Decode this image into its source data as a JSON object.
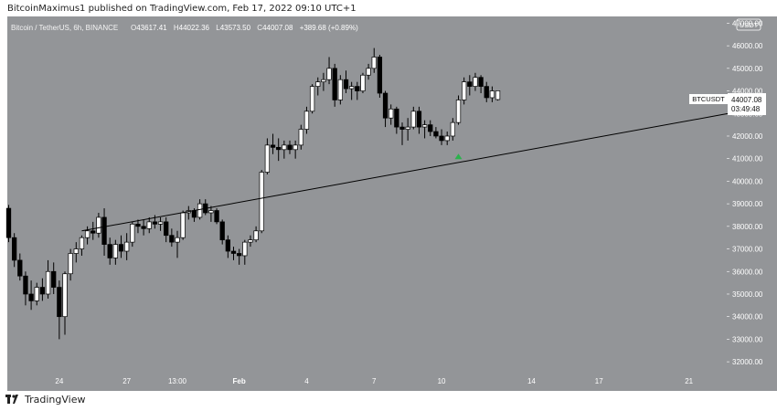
{
  "publish_caption": "BitcoinMaximus1 published on TradingView.com, Feb 17, 2022 09:10 UTC+1",
  "footer": {
    "brand": "TradingView"
  },
  "symbol_header": {
    "name": "Bitcoin / TetherUS, 6h, BINANCE",
    "open_label": "O",
    "open": "43617.41",
    "high_label": "H",
    "high": "44022.36",
    "low_label": "L",
    "low": "43573.50",
    "close_label": "C",
    "close": "44007.08",
    "change": "+389.68 (+0.89%)"
  },
  "price_axis": {
    "currency": "USDT",
    "ticks": [
      "47000.00",
      "46000.00",
      "45000.00",
      "44000.00",
      "43000.00",
      "42000.00",
      "41000.00",
      "40000.00",
      "39000.00",
      "38000.00",
      "37000.00",
      "36000.00",
      "35000.00",
      "34000.00",
      "33000.00",
      "32000.00"
    ]
  },
  "price_tag": {
    "symbol": "BTCUSDT",
    "price": "44007.08",
    "countdown": "03:49:48"
  },
  "time_axis": {
    "labels": [
      "24",
      "27",
      "13:00",
      "Feb",
      "4",
      "7",
      "10",
      "14",
      "17",
      "21"
    ]
  },
  "colors": {
    "background": "#939598",
    "up": "#ffffff",
    "down": "#000000",
    "trendline": "#000000",
    "arrow": "#2bb24c"
  },
  "chart_data": {
    "type": "candlestick",
    "symbol": "BTCUSDT",
    "interval": "6h",
    "exchange": "BINANCE",
    "ylim": [
      31600,
      47300
    ],
    "ohlc": [
      [
        38800,
        38950,
        37300,
        37500
      ],
      [
        37500,
        37700,
        36200,
        36500
      ],
      [
        36500,
        36800,
        35600,
        35800
      ],
      [
        35800,
        36000,
        34500,
        35000
      ],
      [
        35000,
        35600,
        34300,
        34700
      ],
      [
        34700,
        35500,
        34500,
        35300
      ],
      [
        35300,
        35700,
        34700,
        35000
      ],
      [
        35000,
        36500,
        34800,
        36000
      ],
      [
        36000,
        36400,
        35000,
        35300
      ],
      [
        35300,
        35600,
        33000,
        34000
      ],
      [
        34000,
        36000,
        33200,
        35900
      ],
      [
        35900,
        37000,
        35600,
        36800
      ],
      [
        36800,
        37300,
        36400,
        37000
      ],
      [
        37000,
        37600,
        36700,
        37500
      ],
      [
        37500,
        38000,
        37200,
        37800
      ],
      [
        37800,
        38200,
        37400,
        37700
      ],
      [
        37700,
        38600,
        37500,
        38400
      ],
      [
        38400,
        38800,
        36700,
        37200
      ],
      [
        37200,
        37500,
        36300,
        36600
      ],
      [
        36600,
        37400,
        36300,
        37200
      ],
      [
        37200,
        37600,
        36600,
        36900
      ],
      [
        36900,
        37700,
        36500,
        37300
      ],
      [
        37300,
        38200,
        37100,
        38100
      ],
      [
        38100,
        38300,
        37700,
        38000
      ],
      [
        38000,
        38300,
        37600,
        37900
      ],
      [
        37900,
        38400,
        37700,
        38200
      ],
      [
        38200,
        38500,
        37900,
        38100
      ],
      [
        38100,
        38400,
        37800,
        38200
      ],
      [
        38200,
        38400,
        37300,
        37600
      ],
      [
        37600,
        37900,
        37100,
        37300
      ],
      [
        37300,
        37800,
        36600,
        37500
      ],
      [
        37500,
        38700,
        37400,
        38600
      ],
      [
        38600,
        38900,
        38300,
        38700
      ],
      [
        38700,
        38800,
        38200,
        38400
      ],
      [
        38400,
        39200,
        38300,
        39000
      ],
      [
        39000,
        39200,
        38500,
        38600
      ],
      [
        38600,
        38900,
        38200,
        38700
      ],
      [
        38700,
        38800,
        38100,
        38200
      ],
      [
        38200,
        38300,
        37200,
        37400
      ],
      [
        37400,
        37600,
        36600,
        36900
      ],
      [
        36900,
        37100,
        36500,
        36800
      ],
      [
        36800,
        37000,
        36300,
        36700
      ],
      [
        36700,
        37400,
        36300,
        37300
      ],
      [
        37300,
        37600,
        37100,
        37400
      ],
      [
        37400,
        38000,
        37300,
        37800
      ],
      [
        37800,
        40500,
        37700,
        40400
      ],
      [
        40400,
        41900,
        40300,
        41600
      ],
      [
        41600,
        42100,
        41200,
        41500
      ],
      [
        41500,
        41900,
        40900,
        41400
      ],
      [
        41400,
        41800,
        41000,
        41600
      ],
      [
        41600,
        41800,
        41200,
        41400
      ],
      [
        41400,
        41800,
        41000,
        41600
      ],
      [
        41600,
        42500,
        41400,
        42300
      ],
      [
        42300,
        43300,
        42100,
        43100
      ],
      [
        43100,
        44300,
        43000,
        44200
      ],
      [
        44200,
        44600,
        43800,
        44400
      ],
      [
        44400,
        44800,
        44000,
        44500
      ],
      [
        44500,
        45500,
        44300,
        45000
      ],
      [
        45000,
        45200,
        43300,
        43600
      ],
      [
        43600,
        44700,
        43400,
        44500
      ],
      [
        44500,
        44900,
        43900,
        44100
      ],
      [
        44100,
        44400,
        43600,
        44200
      ],
      [
        44200,
        44400,
        43600,
        44000
      ],
      [
        44000,
        44800,
        43900,
        44700
      ],
      [
        44700,
        45200,
        44500,
        45000
      ],
      [
        45000,
        45900,
        44800,
        45500
      ],
      [
        45500,
        45600,
        43700,
        43900
      ],
      [
        43900,
        44000,
        42400,
        42800
      ],
      [
        42800,
        43400,
        42500,
        43200
      ],
      [
        43200,
        43300,
        42100,
        42400
      ],
      [
        42400,
        42600,
        41600,
        42300
      ],
      [
        42300,
        42800,
        41800,
        42400
      ],
      [
        42400,
        43300,
        42300,
        43100
      ],
      [
        43100,
        43300,
        42100,
        42400
      ],
      [
        42400,
        42700,
        41900,
        42500
      ],
      [
        42500,
        42700,
        42000,
        42200
      ],
      [
        42200,
        42400,
        41900,
        42000
      ],
      [
        42000,
        42300,
        41600,
        41800
      ],
      [
        41800,
        42200,
        41600,
        42000
      ],
      [
        42000,
        42800,
        41800,
        42600
      ],
      [
        42600,
        43800,
        42500,
        43600
      ],
      [
        43600,
        44600,
        43400,
        44400
      ],
      [
        44400,
        44700,
        43800,
        44200
      ],
      [
        44200,
        44800,
        44000,
        44600
      ],
      [
        44600,
        44700,
        43900,
        44200
      ],
      [
        44200,
        44400,
        43500,
        43700
      ],
      [
        43700,
        44200,
        43500,
        44000
      ],
      [
        43617.41,
        44022.36,
        43573.5,
        44007.08
      ]
    ],
    "annotations": [
      {
        "type": "trendline",
        "from": {
          "x": 13,
          "y": 37800
        },
        "to": {
          "x": 128,
          "y": 43000
        }
      },
      {
        "type": "arrow-up",
        "x": 80,
        "y": 41100
      }
    ]
  }
}
